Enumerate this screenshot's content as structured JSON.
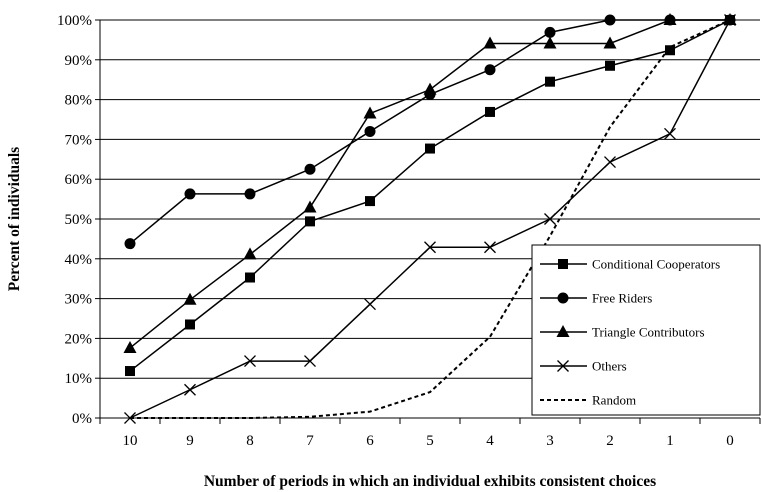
{
  "chart_data": {
    "type": "line",
    "title": "",
    "xlabel": "Number of periods in which an individual exhibits consistent choices",
    "ylabel": "Percent of individuals",
    "categories": [
      "10",
      "9",
      "8",
      "7",
      "6",
      "5",
      "4",
      "3",
      "2",
      "1",
      "0"
    ],
    "ylim": [
      0,
      100
    ],
    "yticks": [
      "0%",
      "10%",
      "20%",
      "30%",
      "40%",
      "50%",
      "60%",
      "70%",
      "80%",
      "90%",
      "100%"
    ],
    "grid": "horizontal",
    "legend_position": "bottom-right",
    "series": [
      {
        "name": "Conditional Cooperators",
        "marker": "square",
        "dash": "solid",
        "color": "#000000",
        "values": [
          11.8,
          23.5,
          35.3,
          49.4,
          54.5,
          67.7,
          76.9,
          84.5,
          88.5,
          92.4,
          100
        ]
      },
      {
        "name": "Free Riders",
        "marker": "circle",
        "dash": "solid",
        "color": "#000000",
        "values": [
          43.8,
          56.3,
          56.3,
          62.5,
          72.0,
          81.3,
          87.5,
          96.9,
          100,
          100,
          100
        ]
      },
      {
        "name": "Triangle Contributors",
        "marker": "triangle",
        "dash": "solid",
        "color": "#000000",
        "values": [
          17.6,
          29.7,
          41.1,
          52.9,
          76.5,
          82.5,
          94.1,
          94.1,
          94.1,
          100,
          100
        ]
      },
      {
        "name": "Others",
        "marker": "x",
        "dash": "solid",
        "color": "#000000",
        "values": [
          0,
          7.1,
          14.3,
          14.3,
          28.6,
          42.9,
          42.9,
          50.0,
          64.3,
          71.4,
          100
        ]
      },
      {
        "name": "Random",
        "marker": "none",
        "dash": "dotted",
        "color": "#000000",
        "values": [
          0,
          0,
          0,
          0.3,
          1.6,
          6.5,
          20.4,
          45.7,
          73.1,
          93.2,
          100
        ]
      }
    ]
  }
}
